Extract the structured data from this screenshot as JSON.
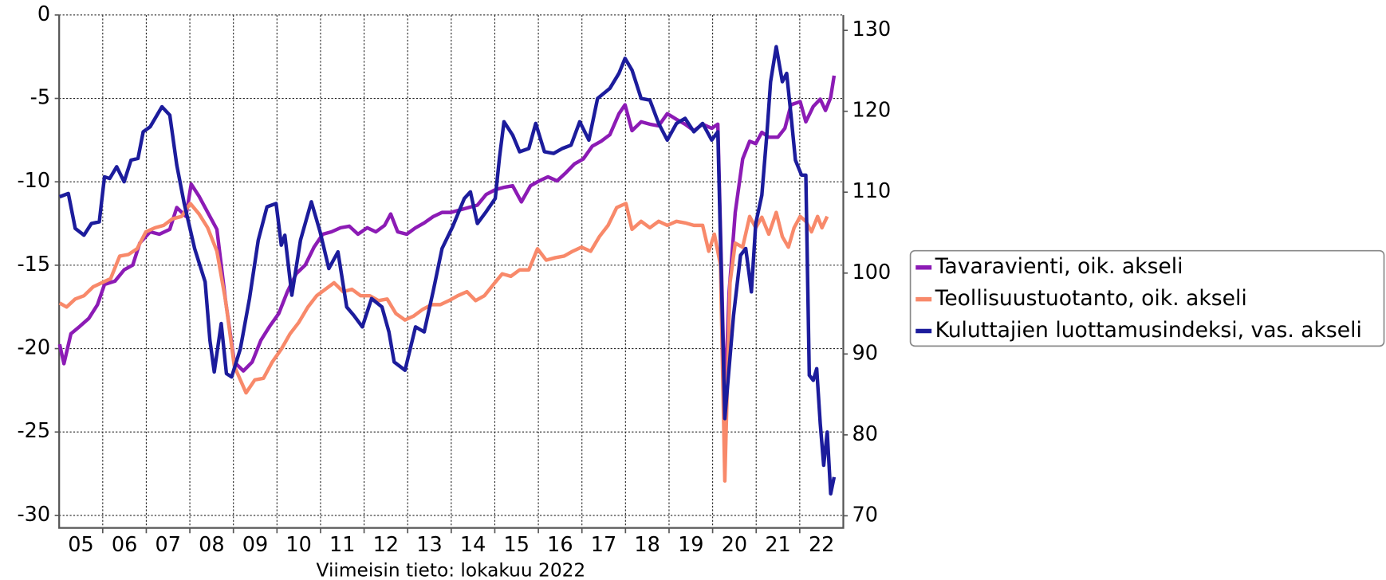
{
  "chart_data": {
    "type": "line",
    "note": "Viimeisin tieto: lokakuu 2022",
    "xlim": [
      2005,
      2023
    ],
    "xticks": [
      {
        "value": 2005.5,
        "label": "05"
      },
      {
        "value": 2006.5,
        "label": "06"
      },
      {
        "value": 2007.5,
        "label": "07"
      },
      {
        "value": 2008.5,
        "label": "08"
      },
      {
        "value": 2009.5,
        "label": "09"
      },
      {
        "value": 2010.5,
        "label": "10"
      },
      {
        "value": 2011.5,
        "label": "11"
      },
      {
        "value": 2012.5,
        "label": "12"
      },
      {
        "value": 2013.5,
        "label": "13"
      },
      {
        "value": 2014.5,
        "label": "14"
      },
      {
        "value": 2015.5,
        "label": "15"
      },
      {
        "value": 2016.5,
        "label": "16"
      },
      {
        "value": 2017.5,
        "label": "17"
      },
      {
        "value": 2018.5,
        "label": "18"
      },
      {
        "value": 2019.5,
        "label": "19"
      },
      {
        "value": 2020.5,
        "label": "20"
      },
      {
        "value": 2021.5,
        "label": "21"
      },
      {
        "value": 2022.5,
        "label": "22"
      }
    ],
    "xgrid": [
      2006,
      2007,
      2008,
      2009,
      2010,
      2011,
      2012,
      2013,
      2014,
      2015,
      2016,
      2017,
      2018,
      2019,
      2020,
      2021,
      2022
    ],
    "ylim": [
      -30.75,
      0
    ],
    "yticks": [
      0,
      -5,
      -10,
      -15,
      -20,
      -25,
      -30
    ],
    "y2lim": [
      68.5,
      131.9
    ],
    "y2ticks": [
      70,
      80,
      90,
      100,
      110,
      120,
      130
    ],
    "grid": true,
    "legend": "right",
    "series": [
      {
        "name": "Tavaravienti, oik. akseli",
        "color": "#8c1bb5",
        "axis": "y2",
        "x": [
          2005.01,
          2005.11,
          2005.27,
          2005.47,
          2005.68,
          2005.88,
          2006.04,
          2006.28,
          2006.49,
          2006.69,
          2006.85,
          2007.09,
          2007.3,
          2007.54,
          2007.7,
          2007.91,
          2008.03,
          2008.21,
          2008.41,
          2008.62,
          2008.82,
          2009.02,
          2009.23,
          2009.43,
          2009.63,
          2009.83,
          2010.04,
          2010.24,
          2010.44,
          2010.65,
          2010.85,
          2011.05,
          2011.25,
          2011.46,
          2011.66,
          2011.86,
          2012.07,
          2012.27,
          2012.47,
          2012.61,
          2012.77,
          2012.98,
          2013.18,
          2013.38,
          2013.59,
          2013.79,
          2013.99,
          2014.19,
          2014.4,
          2014.6,
          2014.8,
          2015.01,
          2015.21,
          2015.41,
          2015.61,
          2015.82,
          2016.02,
          2016.22,
          2016.43,
          2016.63,
          2016.83,
          2017.03,
          2017.24,
          2017.44,
          2017.64,
          2017.85,
          2017.99,
          2018.15,
          2018.36,
          2018.56,
          2018.76,
          2018.96,
          2019.17,
          2019.37,
          2019.57,
          2019.77,
          2019.98,
          2020.12,
          2020.2,
          2020.28,
          2020.38,
          2020.52,
          2020.69,
          2020.85,
          2020.99,
          2021.13,
          2021.29,
          2021.5,
          2021.66,
          2021.8,
          2022.01,
          2022.14,
          2022.31,
          2022.47,
          2022.59,
          2022.71,
          2022.79
        ],
        "values": [
          91.2,
          88.8,
          92.5,
          93.4,
          94.4,
          96.1,
          98.6,
          99.0,
          100.4,
          101.0,
          103.7,
          105.1,
          104.8,
          105.4,
          108.1,
          107.0,
          111.0,
          109.5,
          107.5,
          105.4,
          96.6,
          89.0,
          87.9,
          89.0,
          91.7,
          93.4,
          95.0,
          97.7,
          99.9,
          101.0,
          103.2,
          104.8,
          105.1,
          105.6,
          105.8,
          104.8,
          105.6,
          105.1,
          105.9,
          107.3,
          105.1,
          104.8,
          105.6,
          106.2,
          107.0,
          107.5,
          107.5,
          107.8,
          108.1,
          108.4,
          109.7,
          110.3,
          110.6,
          110.8,
          108.8,
          110.8,
          111.4,
          111.9,
          111.4,
          112.4,
          113.5,
          114.1,
          115.7,
          116.3,
          117.1,
          119.7,
          120.8,
          117.6,
          118.7,
          118.4,
          118.2,
          119.7,
          119.0,
          118.4,
          117.6,
          118.4,
          117.9,
          118.4,
          101.0,
          83.5,
          97.7,
          107.5,
          114.1,
          116.3,
          116.0,
          117.4,
          116.8,
          116.8,
          117.9,
          120.8,
          121.2,
          118.7,
          120.6,
          121.5,
          120.1,
          121.7,
          124.4
        ]
      },
      {
        "name": "Teollisuustuotanto, oik. akseli",
        "color": "#f8896a",
        "axis": "y2",
        "x": [
          2005.01,
          2005.17,
          2005.37,
          2005.57,
          2005.78,
          2005.98,
          2006.18,
          2006.39,
          2006.59,
          2006.79,
          2006.99,
          2007.2,
          2007.4,
          2007.6,
          2007.81,
          2008.01,
          2008.21,
          2008.41,
          2008.62,
          2008.82,
          2009.02,
          2009.29,
          2009.49,
          2009.69,
          2009.89,
          2010.1,
          2010.3,
          2010.5,
          2010.71,
          2010.91,
          2011.11,
          2011.31,
          2011.52,
          2011.72,
          2011.92,
          2012.13,
          2012.33,
          2012.53,
          2012.73,
          2012.94,
          2013.14,
          2013.34,
          2013.55,
          2013.75,
          2013.95,
          2014.15,
          2014.36,
          2014.56,
          2014.76,
          2014.97,
          2015.17,
          2015.37,
          2015.57,
          2015.78,
          2015.98,
          2016.18,
          2016.39,
          2016.59,
          2016.79,
          2016.99,
          2017.2,
          2017.4,
          2017.6,
          2017.8,
          2018.01,
          2018.15,
          2018.36,
          2018.56,
          2018.76,
          2018.96,
          2019.17,
          2019.37,
          2019.57,
          2019.77,
          2019.91,
          2020.04,
          2020.18,
          2020.28,
          2020.4,
          2020.52,
          2020.69,
          2020.85,
          2020.99,
          2021.13,
          2021.29,
          2021.46,
          2021.6,
          2021.74,
          2021.87,
          2022.01,
          2022.14,
          2022.27,
          2022.41,
          2022.51,
          2022.63
        ],
        "values": [
          96.3,
          95.8,
          96.8,
          97.2,
          98.3,
          98.8,
          99.3,
          102.1,
          102.3,
          103.0,
          105.1,
          105.6,
          105.9,
          106.7,
          107.0,
          108.6,
          107.3,
          105.6,
          102.7,
          96.6,
          88.5,
          85.2,
          86.8,
          87.0,
          89.0,
          90.6,
          92.5,
          93.9,
          95.8,
          97.2,
          98.0,
          98.8,
          97.7,
          98.0,
          97.2,
          97.2,
          96.6,
          96.8,
          95.0,
          94.2,
          94.7,
          95.5,
          96.1,
          96.1,
          96.6,
          97.2,
          97.7,
          96.6,
          97.2,
          98.6,
          99.9,
          99.6,
          100.4,
          100.4,
          103.0,
          101.6,
          101.9,
          102.1,
          102.7,
          103.2,
          102.7,
          104.5,
          105.9,
          108.1,
          108.6,
          105.4,
          106.4,
          105.6,
          106.4,
          105.9,
          106.4,
          106.2,
          105.9,
          105.9,
          102.7,
          104.8,
          101.0,
          74.3,
          98.8,
          103.7,
          103.2,
          107.0,
          105.6,
          106.9,
          104.8,
          107.5,
          104.5,
          103.2,
          105.6,
          107.0,
          106.4,
          105.1,
          107.0,
          105.6,
          107.0
        ]
      },
      {
        "name": "Kuluttajien luottamusindeksi, vas. akseli",
        "color": "#1c1c9c",
        "x": [
          2005.01,
          2005.21,
          2005.37,
          2005.57,
          2005.74,
          2005.92,
          2006.04,
          2006.16,
          2006.32,
          2006.49,
          2006.65,
          2006.81,
          2006.93,
          2007.09,
          2007.36,
          2007.54,
          2007.7,
          2007.87,
          2008.11,
          2008.35,
          2008.46,
          2008.56,
          2008.72,
          2008.84,
          2008.96,
          2009.16,
          2009.37,
          2009.57,
          2009.77,
          2009.98,
          2010.1,
          2010.18,
          2010.34,
          2010.54,
          2010.79,
          2010.99,
          2011.19,
          2011.4,
          2011.6,
          2011.76,
          2011.96,
          2012.17,
          2012.41,
          2012.57,
          2012.69,
          2012.94,
          2013.18,
          2013.38,
          2013.59,
          2013.79,
          2014.03,
          2014.3,
          2014.44,
          2014.6,
          2014.8,
          2015.01,
          2015.11,
          2015.21,
          2015.41,
          2015.57,
          2015.78,
          2015.94,
          2016.14,
          2016.35,
          2016.55,
          2016.75,
          2016.95,
          2017.16,
          2017.36,
          2017.64,
          2017.85,
          2017.99,
          2018.15,
          2018.36,
          2018.56,
          2018.76,
          2018.96,
          2019.17,
          2019.37,
          2019.57,
          2019.77,
          2019.98,
          2020.12,
          2020.28,
          2020.48,
          2020.64,
          2020.76,
          2020.89,
          2020.99,
          2021.13,
          2021.25,
          2021.33,
          2021.46,
          2021.6,
          2021.7,
          2021.8,
          2021.9,
          2022.04,
          2022.14,
          2022.22,
          2022.31,
          2022.39,
          2022.47,
          2022.55,
          2022.63,
          2022.71,
          2022.79
        ],
        "values": [
          -10.9,
          -10.7,
          -12.8,
          -13.2,
          -12.5,
          -12.4,
          -9.7,
          -9.8,
          -9.1,
          -10.0,
          -8.7,
          -8.6,
          -7.0,
          -6.7,
          -5.5,
          -6.0,
          -9.0,
          -11.3,
          -14.0,
          -16.0,
          -19.5,
          -21.4,
          -18.5,
          -21.5,
          -21.7,
          -20.0,
          -17.0,
          -13.5,
          -11.5,
          -11.3,
          -13.8,
          -13.2,
          -16.8,
          -13.5,
          -11.2,
          -13.0,
          -15.2,
          -14.2,
          -17.5,
          -18.0,
          -18.7,
          -17.0,
          -17.5,
          -19.0,
          -20.8,
          -21.3,
          -18.7,
          -19.0,
          -16.5,
          -14.0,
          -12.7,
          -11.0,
          -10.6,
          -12.5,
          -11.8,
          -11.0,
          -8.5,
          -6.4,
          -7.2,
          -8.2,
          -8.0,
          -6.5,
          -8.2,
          -8.3,
          -8.0,
          -7.8,
          -6.4,
          -7.5,
          -5.0,
          -4.4,
          -3.5,
          -2.6,
          -3.3,
          -5.0,
          -5.1,
          -6.5,
          -7.5,
          -6.5,
          -6.2,
          -7.0,
          -6.5,
          -7.5,
          -7.0,
          -24.2,
          -18.0,
          -14.4,
          -14.0,
          -16.6,
          -12.5,
          -10.8,
          -7.0,
          -4.0,
          -1.9,
          -4.0,
          -3.5,
          -6.0,
          -8.7,
          -9.6,
          -9.6,
          -21.6,
          -21.9,
          -21.2,
          -24.5,
          -27.0,
          -25.0,
          -28.7,
          -27.7
        ]
      }
    ]
  }
}
